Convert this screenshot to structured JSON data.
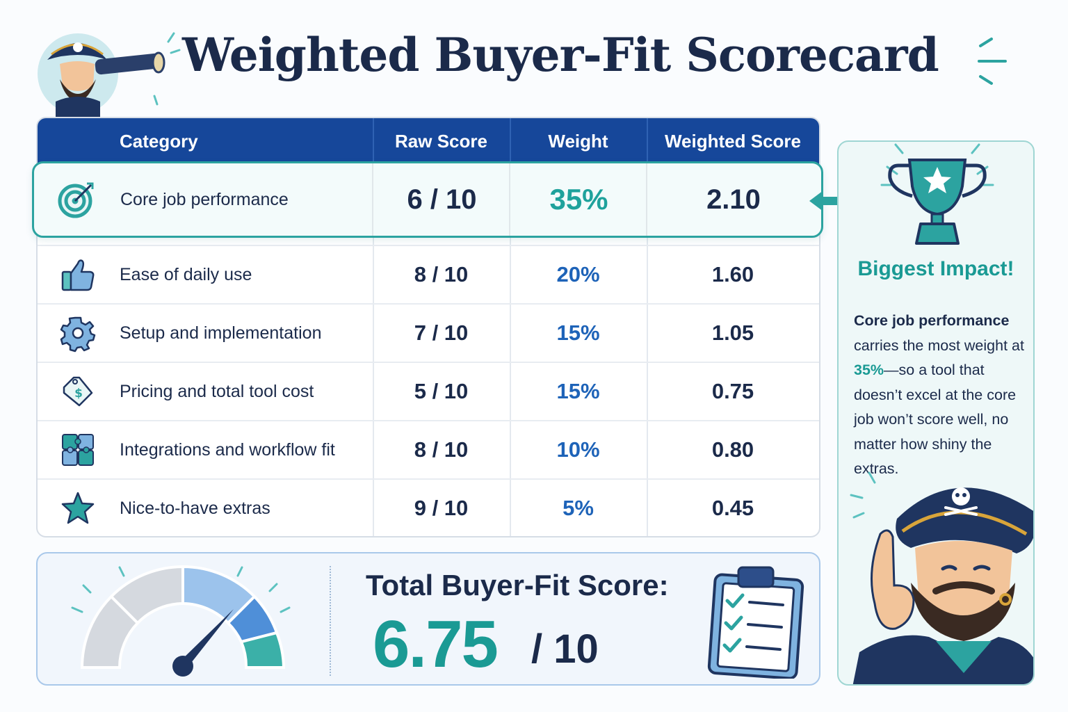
{
  "title": "Weighted Buyer-Fit Scorecard",
  "table": {
    "headers": [
      "Category",
      "Raw Score",
      "Weight",
      "Weighted Score"
    ],
    "rows": [
      {
        "icon": "target-icon",
        "category": "Core job performance",
        "raw": "6 / 10",
        "weight": "35%",
        "weighted": "2.10",
        "highlighted": true
      },
      {
        "icon": "thumbs-up-icon",
        "category": "Ease of daily use",
        "raw": "8 / 10",
        "weight": "20%",
        "weighted": "1.60"
      },
      {
        "icon": "gear-icon",
        "category": "Setup and implementation",
        "raw": "7 / 10",
        "weight": "15%",
        "weighted": "1.05"
      },
      {
        "icon": "price-tag-icon",
        "category": "Pricing and total tool cost",
        "raw": "5 / 10",
        "weight": "15%",
        "weighted": "0.75"
      },
      {
        "icon": "puzzle-icon",
        "category": "Integrations and workflow fit",
        "raw": "8 / 10",
        "weight": "10%",
        "weighted": "0.80"
      },
      {
        "icon": "star-icon",
        "category": "Nice-to-have extras",
        "raw": "9 / 10",
        "weight": "5%",
        "weighted": "0.45"
      }
    ]
  },
  "total": {
    "label": "Total Buyer-Fit Score:",
    "score": "6.75",
    "max": "/ 10",
    "gauge_fraction": 0.675
  },
  "side_panel": {
    "title": "Biggest Impact!",
    "text_bold": "Core job performance",
    "text_1": "carries the most weight at",
    "text_highlight": "35%",
    "text_2": "—so a tool that doesn’t excel at the core job won’t score well, no matter how shiny the extras."
  },
  "colors": {
    "navy": "#1b2a4a",
    "header_blue": "#16479a",
    "teal": "#1a9a94",
    "weight_blue": "#1e63b8",
    "panel_bg": "#eef8f8"
  }
}
